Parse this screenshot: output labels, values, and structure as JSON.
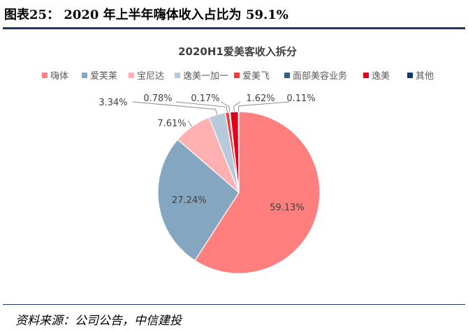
{
  "figure": {
    "title": "图表25： 2020 年上半年嗨体收入占比为 59.1%",
    "source": "资料来源：公司公告，中信建投"
  },
  "chart_data": {
    "type": "pie",
    "title": "2020H1爱美客收入拆分",
    "legend_position": "top",
    "slices": [
      {
        "name": "嗨体",
        "value": 59.13,
        "label": "59.13%",
        "color": "#ff7f7f"
      },
      {
        "name": "爱芙莱",
        "value": 27.24,
        "label": "27.24%",
        "color": "#84a6c0"
      },
      {
        "name": "宝尼达",
        "value": 7.61,
        "label": "7.61%",
        "color": "#ffb0b0"
      },
      {
        "name": "逸美一加一",
        "value": 3.34,
        "label": "3.34%",
        "color": "#b6cadb"
      },
      {
        "name": "爱美飞",
        "value": 0.78,
        "label": "0.78%",
        "color": "#f03c3c"
      },
      {
        "name": "面部美容业务",
        "value": 0.17,
        "label": "0.17%",
        "color": "#2f5f86"
      },
      {
        "name": "逸美",
        "value": 1.62,
        "label": "1.62%",
        "color": "#e3001b"
      },
      {
        "name": "其他",
        "value": 0.11,
        "label": "0.11%",
        "color": "#0b3c6e"
      }
    ]
  }
}
